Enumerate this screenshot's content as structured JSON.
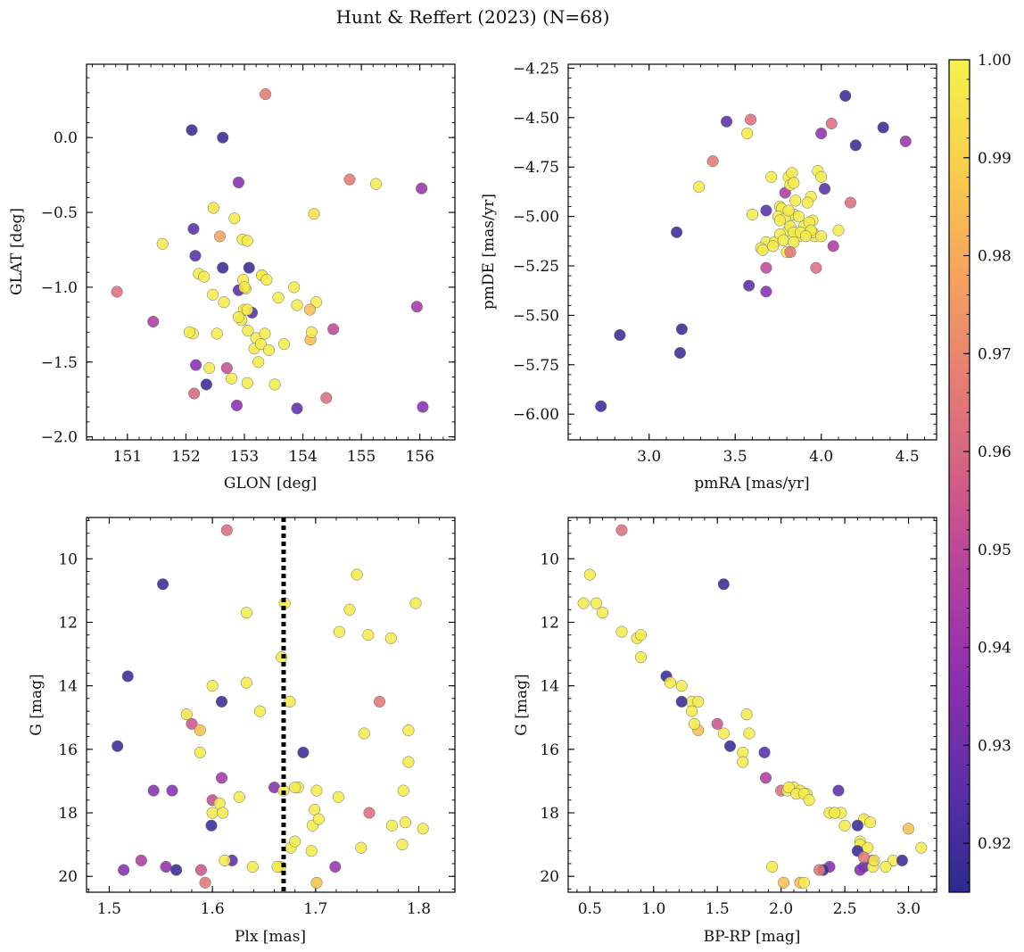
{
  "figure": {
    "title": "Hunt & Reffert (2023) (N=68)"
  },
  "colorbar": {
    "min": 0.915,
    "max": 1.0,
    "ticks": [
      0.92,
      0.93,
      0.94,
      0.95,
      0.96,
      0.97,
      0.98,
      0.99,
      1.0
    ],
    "tick_labels": [
      "0.92",
      "0.93",
      "0.94",
      "0.95",
      "0.96",
      "0.97",
      "0.98",
      "0.99",
      "1.00"
    ],
    "colormap": "plasma",
    "color_stops": [
      "#2c2a8f",
      "#5b2fa8",
      "#8b2fb0",
      "#b33fa0",
      "#d35f87",
      "#e88072",
      "#f7a55c",
      "#f9d04a",
      "#f3f24d"
    ]
  },
  "chart_data": [
    {
      "id": "panel-sky",
      "type": "scatter",
      "title": "",
      "xlabel": "GLON [deg]",
      "ylabel": "GLAT [deg]",
      "xlim": [
        150.3,
        156.6
      ],
      "ylim": [
        -2.02,
        0.49
      ],
      "xticks": [
        151,
        152,
        153,
        154,
        155,
        156
      ],
      "xtick_labels": [
        "151",
        "152",
        "153",
        "154",
        "155",
        "156"
      ],
      "yticks": [
        0.0,
        -0.5,
        -1.0,
        -1.5,
        -2.0
      ],
      "ytick_labels": [
        "0.0",
        "−0.5",
        "−1.0",
        "−1.5",
        "−2.0"
      ],
      "x": [
        153.36,
        152.1,
        152.63,
        152.9,
        154.8,
        155.25,
        156.03,
        154.19,
        152.47,
        152.83,
        151.6,
        152.13,
        152.58,
        152.97,
        153.05,
        152.16,
        152.63,
        153.08,
        153.3,
        152.22,
        152.31,
        152.98,
        152.65,
        153.02,
        152.9,
        153.13,
        153.58,
        153.85,
        154.23,
        150.82,
        151.44,
        152.99,
        154.12,
        153.05,
        153.9,
        152.95,
        153.06,
        154.13,
        154.52,
        155.95,
        152.12,
        153.2,
        153.35,
        153.17,
        153.28,
        153.42,
        153.68,
        154.15,
        153.24,
        152.17,
        152.4,
        152.7,
        152.78,
        153.05,
        153.52,
        152.14,
        152.35,
        152.87,
        153.9,
        154.4,
        156.05,
        153.3,
        152.53,
        152.9,
        153.38,
        153.0,
        152.46,
        152.06
      ],
      "y": [
        0.29,
        0.05,
        0.0,
        -0.3,
        -0.28,
        -0.31,
        -0.34,
        -0.51,
        -0.47,
        -0.54,
        -0.71,
        -0.61,
        -0.66,
        -0.68,
        -0.69,
        -0.79,
        -0.87,
        -0.87,
        -0.92,
        -0.91,
        -0.93,
        -0.95,
        -1.1,
        -1.01,
        -1.02,
        -1.17,
        -1.07,
        -1.0,
        -1.1,
        -1.03,
        -1.23,
        -1.15,
        -1.15,
        -1.15,
        -1.12,
        -1.22,
        -1.29,
        -1.35,
        -1.28,
        -1.13,
        -1.31,
        -1.34,
        -1.31,
        -1.41,
        -1.38,
        -1.42,
        -1.38,
        -1.3,
        -1.5,
        -1.52,
        -1.54,
        -1.54,
        -1.61,
        -1.64,
        -1.65,
        -1.71,
        -1.65,
        -1.79,
        -1.81,
        -1.74,
        -1.8,
        -0.92,
        -1.31,
        -1.2,
        -0.95,
        -1.0,
        -1.05,
        -1.3
      ],
      "c": [
        0.966,
        0.918,
        0.918,
        0.935,
        0.965,
        0.998,
        0.94,
        0.995,
        0.996,
        0.998,
        0.998,
        0.925,
        0.978,
        0.998,
        0.998,
        0.925,
        0.918,
        0.918,
        0.998,
        0.998,
        0.998,
        0.998,
        0.998,
        0.998,
        0.925,
        0.925,
        0.998,
        0.998,
        0.998,
        0.963,
        0.945,
        0.998,
        0.985,
        0.998,
        0.998,
        0.998,
        0.998,
        0.985,
        0.95,
        0.942,
        0.998,
        0.998,
        0.998,
        0.998,
        0.998,
        0.998,
        0.998,
        0.998,
        0.998,
        0.935,
        0.998,
        0.953,
        0.998,
        0.998,
        0.998,
        0.96,
        0.918,
        0.935,
        0.925,
        0.962,
        0.935,
        0.998,
        0.998,
        0.998,
        0.998,
        0.998,
        0.998,
        0.998
      ]
    },
    {
      "id": "panel-pm",
      "type": "scatter",
      "title": "",
      "xlabel": "pmRA [mas/yr]",
      "ylabel": "pmDE [mas/yr]",
      "xlim": [
        2.53,
        4.67
      ],
      "ylim": [
        -6.13,
        -4.23
      ],
      "xticks": [
        3.0,
        3.5,
        4.0,
        4.5
      ],
      "xtick_labels": [
        "3.0",
        "3.5",
        "4.0",
        "4.5"
      ],
      "yticks": [
        -4.25,
        -4.5,
        -4.75,
        -5.0,
        -5.25,
        -5.5,
        -5.75,
        -6.0
      ],
      "ytick_labels": [
        "−4.25",
        "−4.50",
        "−4.75",
        "−5.00",
        "−5.25",
        "−5.50",
        "−5.75",
        "−6.00"
      ],
      "x": [
        4.14,
        3.45,
        3.59,
        3.57,
        4.06,
        4.36,
        4.2,
        4.0,
        4.49,
        3.37,
        3.29,
        3.98,
        4.0,
        3.81,
        3.83,
        3.71,
        3.79,
        3.82,
        3.84,
        3.94,
        3.76,
        3.85,
        3.92,
        3.84,
        3.77,
        3.75,
        3.79,
        3.81,
        3.6,
        3.68,
        3.68,
        3.95,
        4.02,
        3.87,
        3.76,
        3.65,
        3.73,
        3.81,
        3.82,
        3.76,
        3.87,
        3.9,
        3.84,
        3.78,
        3.66,
        3.93,
        4.1,
        4.17,
        3.96,
        3.95,
        3.88,
        3.94,
        3.91,
        4.0,
        3.72,
        3.84,
        4.07,
        3.8,
        3.58,
        3.68,
        3.68,
        3.82,
        3.97,
        3.16,
        2.83,
        3.19,
        3.18,
        2.72
      ],
      "y": [
        -4.39,
        -4.52,
        -4.51,
        -4.58,
        -4.53,
        -4.55,
        -4.64,
        -4.58,
        -4.62,
        -4.72,
        -4.85,
        -4.77,
        -4.8,
        -4.8,
        -4.78,
        -4.8,
        -4.88,
        -4.84,
        -4.83,
        -4.9,
        -4.95,
        -4.92,
        -4.93,
        -4.99,
        -4.96,
        -5.0,
        -5.01,
        -4.97,
        -4.99,
        -4.97,
        -5.13,
        -5.02,
        -4.86,
        -5.0,
        -5.02,
        -5.16,
        -5.13,
        -5.07,
        -5.05,
        -5.09,
        -5.1,
        -5.05,
        -5.08,
        -5.12,
        -5.17,
        -5.03,
        -5.07,
        -4.93,
        -5.1,
        -5.08,
        -5.08,
        -5.07,
        -5.1,
        -5.1,
        -5.15,
        -5.13,
        -5.15,
        -5.18,
        -5.35,
        -5.26,
        -5.38,
        -5.18,
        -5.26,
        -5.08,
        -5.6,
        -5.57,
        -5.69,
        -5.96
      ],
      "c": [
        0.918,
        0.925,
        0.963,
        0.998,
        0.962,
        0.918,
        0.918,
        0.938,
        0.94,
        0.966,
        0.998,
        0.998,
        0.998,
        0.998,
        0.998,
        0.998,
        0.945,
        0.998,
        0.998,
        0.998,
        0.998,
        0.998,
        0.998,
        0.998,
        0.998,
        0.998,
        0.998,
        0.998,
        0.998,
        0.925,
        0.998,
        0.998,
        0.925,
        0.998,
        0.998,
        0.998,
        0.998,
        0.998,
        0.998,
        0.998,
        0.998,
        0.998,
        0.998,
        0.998,
        0.998,
        0.998,
        0.998,
        0.962,
        0.998,
        0.998,
        0.998,
        0.998,
        0.998,
        0.998,
        0.998,
        0.998,
        0.945,
        0.998,
        0.925,
        0.95,
        0.935,
        0.965,
        0.962,
        0.918,
        0.918,
        0.918,
        0.918,
        0.918
      ]
    },
    {
      "id": "panel-plx",
      "type": "scatter",
      "title": "",
      "xlabel": "Plx [mas]",
      "ylabel": "G [mag]",
      "xlim": [
        1.478,
        1.835
      ],
      "ylim": [
        20.5,
        8.7
      ],
      "y_inverted": true,
      "xticks": [
        1.5,
        1.6,
        1.7,
        1.8
      ],
      "xtick_labels": [
        "1.5",
        "1.6",
        "1.7",
        "1.8"
      ],
      "yticks": [
        10,
        12,
        14,
        16,
        18,
        20
      ],
      "ytick_labels": [
        "10",
        "12",
        "14",
        "16",
        "18",
        "20"
      ],
      "vline": {
        "x": 1.669,
        "style": "dotted",
        "color": "#000000"
      },
      "x": [
        1.614,
        1.552,
        1.74,
        1.67,
        1.797,
        1.633,
        1.733,
        1.751,
        1.773,
        1.723,
        1.667,
        1.518,
        1.6,
        1.675,
        1.609,
        1.633,
        1.646,
        1.575,
        1.762,
        1.58,
        1.588,
        1.588,
        1.747,
        1.79,
        1.508,
        1.688,
        1.609,
        1.79,
        1.6,
        1.66,
        1.683,
        1.701,
        1.543,
        1.561,
        1.699,
        1.722,
        1.785,
        1.669,
        1.626,
        1.607,
        1.6,
        1.61,
        1.68,
        1.752,
        1.697,
        1.599,
        1.703,
        1.774,
        1.787,
        1.804,
        1.784,
        1.676,
        1.696,
        1.68,
        1.744,
        1.666,
        1.619,
        1.639,
        1.531,
        1.612,
        1.663,
        1.555,
        1.514,
        1.565,
        1.589,
        1.593,
        1.701,
        1.719
      ],
      "y": [
        9.1,
        10.8,
        10.5,
        11.4,
        11.4,
        11.7,
        11.6,
        12.4,
        12.5,
        12.3,
        13.1,
        13.7,
        14.0,
        14.5,
        14.5,
        13.9,
        14.8,
        14.9,
        14.5,
        15.2,
        15.4,
        16.1,
        15.5,
        15.4,
        15.9,
        16.1,
        16.9,
        16.4,
        17.6,
        17.2,
        17.2,
        17.3,
        17.3,
        17.3,
        17.9,
        17.5,
        17.3,
        17.3,
        17.5,
        17.7,
        18.0,
        18.0,
        17.2,
        18.0,
        18.4,
        18.4,
        18.2,
        18.4,
        18.3,
        18.5,
        19.0,
        19.1,
        19.2,
        18.9,
        19.1,
        19.7,
        19.5,
        19.7,
        19.5,
        19.5,
        19.7,
        19.7,
        19.8,
        19.8,
        19.8,
        20.2,
        20.2,
        19.7
      ],
      "c": [
        0.962,
        0.918,
        0.998,
        0.998,
        0.998,
        0.998,
        0.998,
        0.998,
        0.998,
        0.998,
        0.998,
        0.918,
        0.998,
        0.998,
        0.918,
        0.998,
        0.998,
        0.995,
        0.965,
        0.955,
        0.985,
        0.998,
        0.998,
        0.998,
        0.918,
        0.918,
        0.942,
        0.998,
        0.952,
        0.935,
        0.998,
        0.998,
        0.935,
        0.935,
        0.998,
        0.998,
        0.998,
        0.998,
        0.998,
        0.998,
        0.998,
        0.998,
        0.998,
        0.962,
        0.998,
        0.918,
        0.998,
        0.998,
        0.998,
        0.998,
        0.998,
        0.998,
        0.998,
        0.998,
        0.998,
        0.998,
        0.925,
        0.998,
        0.945,
        0.998,
        0.998,
        0.938,
        0.935,
        0.918,
        0.955,
        0.965,
        0.985,
        0.94
      ]
    },
    {
      "id": "panel-cmd",
      "type": "scatter",
      "title": "",
      "xlabel": "BP-RP [mag]",
      "ylabel": "G [mag]",
      "xlim": [
        0.33,
        3.22
      ],
      "ylim": [
        20.5,
        8.7
      ],
      "y_inverted": true,
      "xticks": [
        0.5,
        1.0,
        1.5,
        2.0,
        2.5,
        3.0
      ],
      "xtick_labels": [
        "0.5",
        "1.0",
        "1.5",
        "2.0",
        "2.5",
        "3.0"
      ],
      "yticks": [
        10,
        12,
        14,
        16,
        18,
        20
      ],
      "ytick_labels": [
        "10",
        "12",
        "14",
        "16",
        "18",
        "20"
      ],
      "x": [
        0.75,
        0.5,
        0.45,
        0.55,
        0.6,
        0.75,
        0.87,
        0.9,
        0.9,
        1.1,
        1.13,
        1.22,
        1.3,
        1.35,
        1.35,
        1.3,
        1.32,
        1.22,
        1.5,
        1.55,
        1.6,
        1.73,
        1.75,
        1.7,
        1.7,
        1.87,
        1.55,
        1.88,
        2.0,
        2.05,
        2.1,
        2.15,
        2.2,
        2.06,
        2.12,
        2.18,
        2.22,
        2.45,
        2.42,
        2.47,
        2.38,
        2.42,
        2.5,
        2.65,
        2.7,
        2.6,
        2.62,
        2.62,
        2.68,
        2.72,
        2.88,
        3.0,
        3.1,
        2.82,
        2.65,
        2.72,
        2.62,
        2.6,
        2.73,
        2.65,
        2.38,
        2.33,
        2.95,
        2.3,
        1.93,
        2.02,
        2.15,
        2.18
      ],
      "y": [
        9.1,
        10.5,
        11.4,
        11.4,
        11.7,
        12.3,
        12.5,
        12.4,
        13.1,
        13.7,
        13.9,
        14.0,
        14.5,
        14.5,
        15.4,
        14.8,
        15.2,
        14.5,
        15.2,
        15.5,
        15.9,
        14.9,
        15.5,
        16.1,
        16.4,
        16.1,
        10.8,
        16.9,
        17.3,
        17.3,
        17.2,
        17.3,
        17.4,
        17.2,
        17.4,
        17.4,
        17.6,
        17.3,
        18.0,
        18.0,
        18.0,
        18.0,
        18.4,
        18.2,
        18.3,
        18.4,
        18.9,
        19.0,
        19.1,
        19.5,
        19.5,
        18.5,
        19.1,
        19.7,
        19.7,
        19.7,
        19.8,
        19.2,
        19.5,
        19.4,
        19.7,
        19.8,
        19.5,
        19.8,
        19.7,
        20.2,
        20.2,
        20.2
      ],
      "c": [
        0.962,
        0.998,
        0.998,
        0.998,
        0.998,
        0.998,
        0.998,
        0.998,
        0.998,
        0.918,
        0.998,
        0.998,
        0.998,
        0.998,
        0.985,
        0.998,
        0.998,
        0.918,
        0.955,
        0.998,
        0.918,
        0.998,
        0.998,
        0.998,
        0.998,
        0.925,
        0.918,
        0.945,
        0.962,
        0.998,
        0.998,
        0.998,
        0.998,
        0.998,
        0.998,
        0.998,
        0.998,
        0.925,
        0.998,
        0.998,
        0.998,
        0.998,
        0.998,
        0.998,
        0.998,
        0.918,
        0.998,
        0.998,
        0.998,
        0.935,
        0.998,
        0.985,
        0.998,
        0.998,
        0.925,
        0.998,
        0.935,
        0.918,
        0.998,
        0.965,
        0.935,
        0.918,
        0.918,
        0.965,
        0.998,
        0.985,
        0.985,
        0.998
      ]
    }
  ]
}
